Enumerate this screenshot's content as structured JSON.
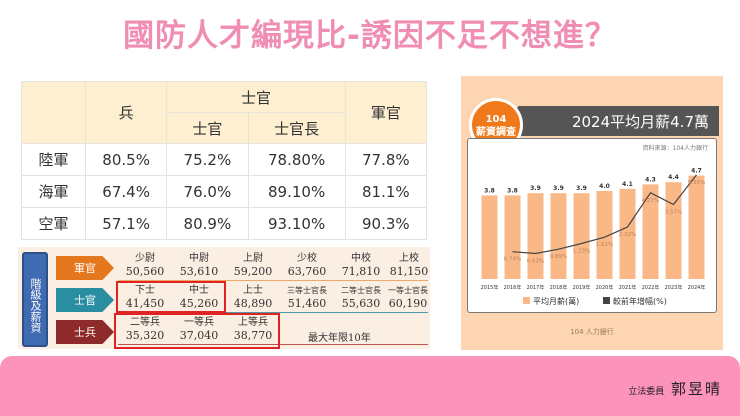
{
  "title": "國防人才編現比-誘因不足不想進？",
  "table": {
    "headers": {
      "soldier": "兵",
      "nco_group": "士官",
      "nco": "士官",
      "senior_nco": "士官長",
      "officer": "軍官"
    },
    "rows": [
      {
        "branch": "陸軍",
        "soldier": "80.5%",
        "nco": "75.2%",
        "senior_nco": "78.80%",
        "officer": "77.8%"
      },
      {
        "branch": "海軍",
        "soldier": "67.4%",
        "nco": "76.0%",
        "senior_nco": "89.10%",
        "officer": "81.1%"
      },
      {
        "branch": "空軍",
        "soldier": "57.1%",
        "nco": "80.9%",
        "senior_nco": "93.10%",
        "officer": "90.3%"
      }
    ]
  },
  "grades": {
    "scroll_label": "階級及薪資",
    "categories": {
      "officer": "軍官",
      "nco": "士官",
      "soldier": "士兵"
    },
    "officer": [
      {
        "rank": "少尉",
        "pay": "50,560"
      },
      {
        "rank": "中尉",
        "pay": "53,610"
      },
      {
        "rank": "上尉",
        "pay": "59,200"
      },
      {
        "rank": "少校",
        "pay": "63,760"
      },
      {
        "rank": "中校",
        "pay": "71,810"
      },
      {
        "rank": "上校",
        "pay": "81,150"
      }
    ],
    "nco": [
      {
        "rank": "下士",
        "pay": "41,450"
      },
      {
        "rank": "中士",
        "pay": "45,260"
      },
      {
        "rank": "上士",
        "pay": "48,890"
      },
      {
        "rank": "三等士官長",
        "pay": "51,460"
      },
      {
        "rank": "二等士官長",
        "pay": "55,630"
      },
      {
        "rank": "一等士官長",
        "pay": "60,190"
      }
    ],
    "soldier": [
      {
        "rank": "二等兵",
        "pay": "35,320"
      },
      {
        "rank": "一等兵",
        "pay": "37,040"
      },
      {
        "rank": "上等兵",
        "pay": "38,770"
      }
    ],
    "max_term_note": "最大年限10年"
  },
  "chart_panel": {
    "badge_line1": "104",
    "badge_line2": "薪資調查",
    "header": "2024平均月薪4.7萬",
    "source": "資料來源：104人力銀行",
    "footer_logo": "104 人力銀行"
  },
  "chart_data": {
    "type": "bar",
    "title": "2024平均月薪4.7萬",
    "categories": [
      "2015年",
      "2016年",
      "2017年",
      "2018年",
      "2019年",
      "2020年",
      "2021年",
      "2022年",
      "2023年",
      "2024年"
    ],
    "series": [
      {
        "name": "平均月薪(萬)",
        "type": "bar",
        "color": "#f9b886",
        "values": [
          3.8,
          3.8,
          3.9,
          3.9,
          3.9,
          4.0,
          4.1,
          4.3,
          4.4,
          4.7
        ]
      },
      {
        "name": "較前年增幅(%)",
        "type": "line",
        "color": "#444444",
        "values": [
          null,
          0.74,
          0.63,
          0.89,
          1.23,
          1.61,
          2.22,
          4.27,
          3.57,
          5.35
        ],
        "labels": [
          "",
          "0.74%",
          "0.63%",
          "0.89%",
          "1.23%",
          "1.61%",
          "2.22%",
          "4.27%",
          "3.57%",
          "5.35%"
        ]
      }
    ],
    "legend_position": "bottom",
    "grid": false
  },
  "banner": {
    "signature_title": "立法委員",
    "signature_name": "郭昱晴"
  }
}
